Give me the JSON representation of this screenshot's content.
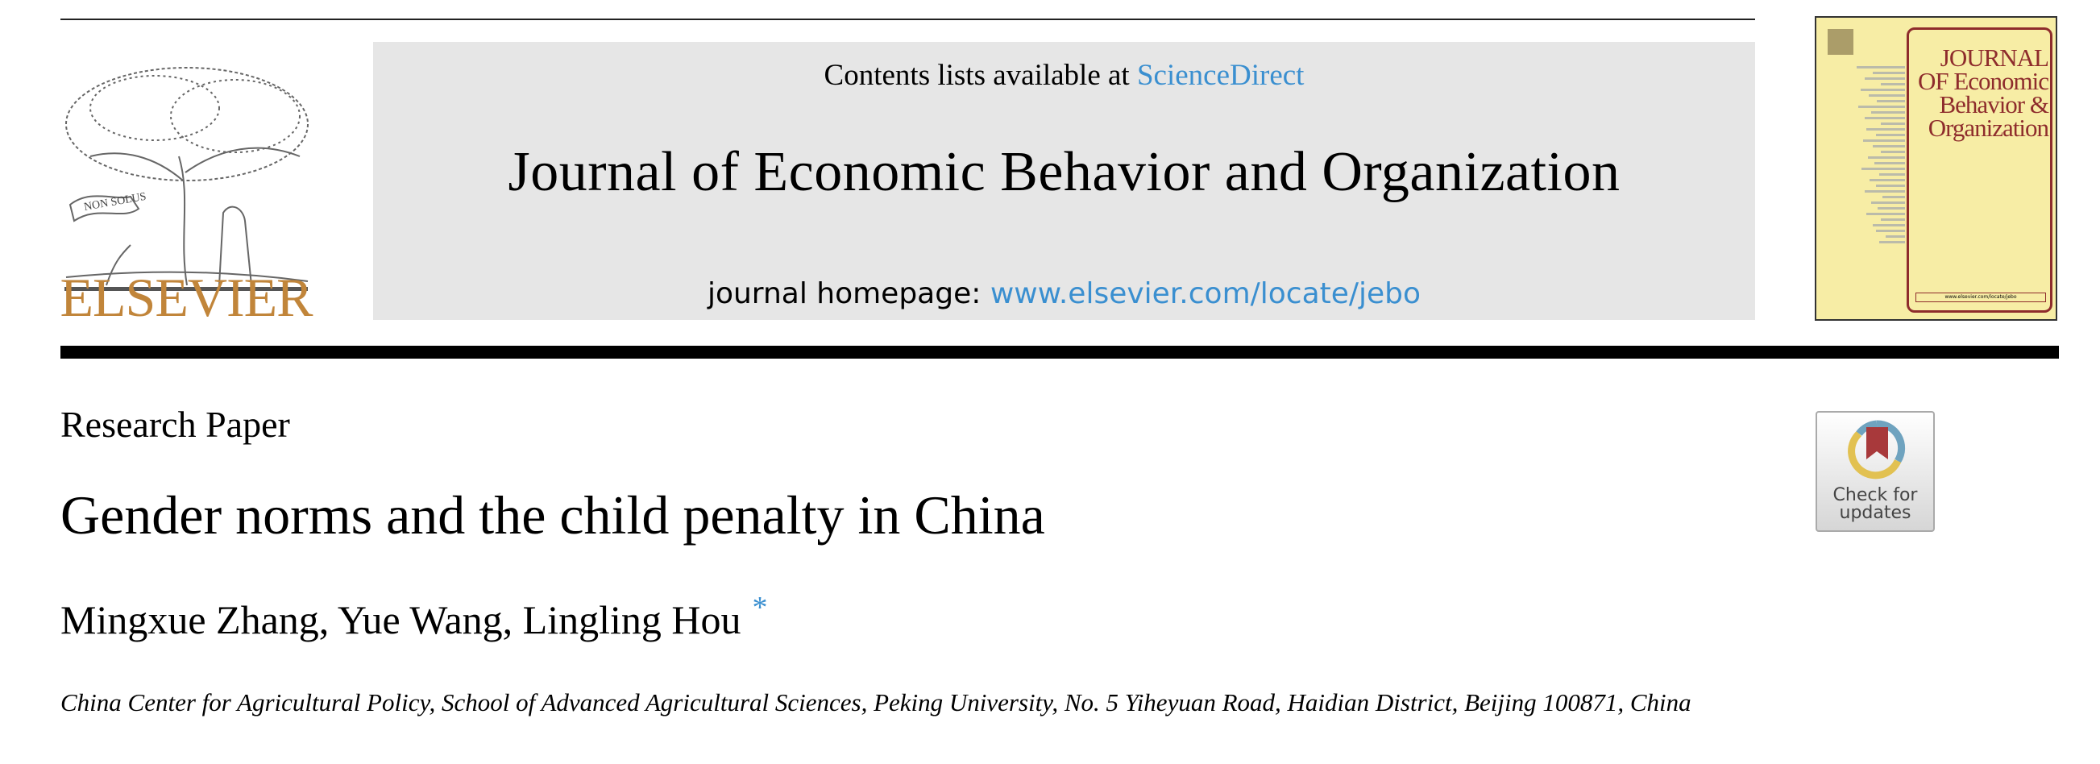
{
  "header": {
    "publisher_logo_text": "ELSEVIER",
    "logo_motto": "NON SOLUS",
    "contents_prefix": "Contents lists available at ",
    "contents_link": "ScienceDirect",
    "journal_title": "Journal of Economic Behavior and Organization",
    "homepage_prefix": "journal homepage: ",
    "homepage_link": "www.elsevier.com/locate/jebo",
    "cover": {
      "title": "JOURNAL OF Economic Behavior & Organization",
      "url": "www.elsevier.com/locate/jebo"
    }
  },
  "article": {
    "section_type": "Research Paper",
    "title": "Gender norms and the child penalty in China",
    "authors": "Mingxue Zhang, Yue Wang, Lingling Hou",
    "corresponding_marker": "*",
    "affiliation": "China Center for Agricultural Policy, School of Advanced Agricultural Sciences, Peking University, No. 5 Yiheyuan Road, Haidian District, Beijing 100871, China"
  },
  "check_updates": {
    "label": "Check for updates"
  },
  "colors": {
    "link": "#3a8fd0",
    "elsevier": "#c1853a",
    "cover_bg": "#f7eda5",
    "cover_accent": "#8e2c2c"
  }
}
